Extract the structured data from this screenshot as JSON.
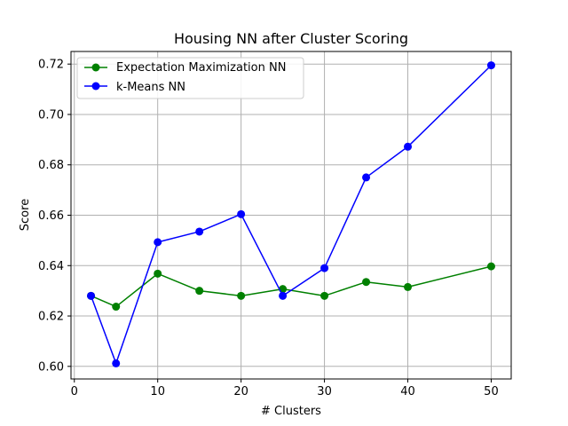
{
  "chart_data": {
    "type": "line",
    "title": "Housing NN after Cluster Scoring",
    "xlabel": "# Clusters",
    "ylabel": "Score",
    "xlim": [
      -0.4,
      52.4
    ],
    "ylim": [
      0.595,
      0.725
    ],
    "xticks": [
      0,
      10,
      20,
      30,
      40,
      50
    ],
    "yticks": [
      0.6,
      0.62,
      0.64,
      0.66,
      0.68,
      0.7,
      0.72
    ],
    "xtick_labels": [
      "0",
      "10",
      "20",
      "30",
      "40",
      "50"
    ],
    "ytick_labels": [
      "0.60",
      "0.62",
      "0.64",
      "0.66",
      "0.68",
      "0.70",
      "0.72"
    ],
    "grid": true,
    "legend": "top-left",
    "series": [
      {
        "name": "Expectation Maximization NN",
        "color": "#008000",
        "marker": "circle",
        "x": [
          2,
          5,
          10,
          15,
          20,
          25,
          30,
          35,
          40,
          50
        ],
        "y": [
          0.628,
          0.6237,
          0.6368,
          0.63,
          0.628,
          0.6307,
          0.628,
          0.6335,
          0.6315,
          0.6397
        ]
      },
      {
        "name": "k-Means NN",
        "color": "#0000ff",
        "marker": "circle",
        "x": [
          2,
          5,
          10,
          15,
          20,
          25,
          30,
          35,
          40,
          50
        ],
        "y": [
          0.628,
          0.6012,
          0.6493,
          0.6535,
          0.6604,
          0.628,
          0.639,
          0.675,
          0.6872,
          0.7195
        ]
      }
    ]
  }
}
